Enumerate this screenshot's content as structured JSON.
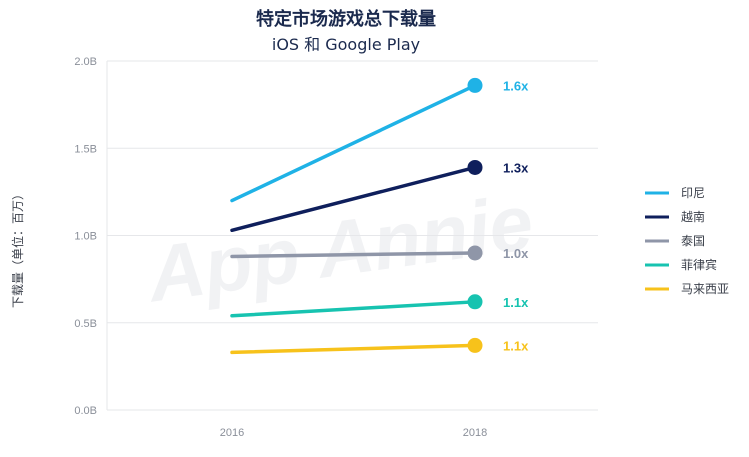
{
  "chart_data": {
    "type": "line",
    "title": "特定市场游戏总下载量",
    "subtitle": "iOS 和 Google Play",
    "ylabel": "下载量（单位：百万）",
    "xlabel": "",
    "watermark": "App Annie",
    "categories": [
      "2016",
      "2018"
    ],
    "yticks": [
      "0.0B",
      "0.5B",
      "1.0B",
      "1.5B",
      "2.0B"
    ],
    "ylim": [
      0,
      2.0
    ],
    "grid": true,
    "legend_position": "right",
    "series": [
      {
        "name": "印尼",
        "values": [
          1.2,
          1.86
        ],
        "growth": "1.6x",
        "color": "#1fb2e6"
      },
      {
        "name": "越南",
        "values": [
          1.03,
          1.39
        ],
        "growth": "1.3x",
        "color": "#0f1f5c"
      },
      {
        "name": "泰国",
        "values": [
          0.88,
          0.9
        ],
        "growth": "1.0x",
        "color": "#8f96a8"
      },
      {
        "name": "菲律宾",
        "values": [
          0.54,
          0.62
        ],
        "growth": "1.1x",
        "color": "#17c3b0"
      },
      {
        "name": "马来西亚",
        "values": [
          0.33,
          0.37
        ],
        "growth": "1.1x",
        "color": "#f7c21b"
      }
    ]
  }
}
